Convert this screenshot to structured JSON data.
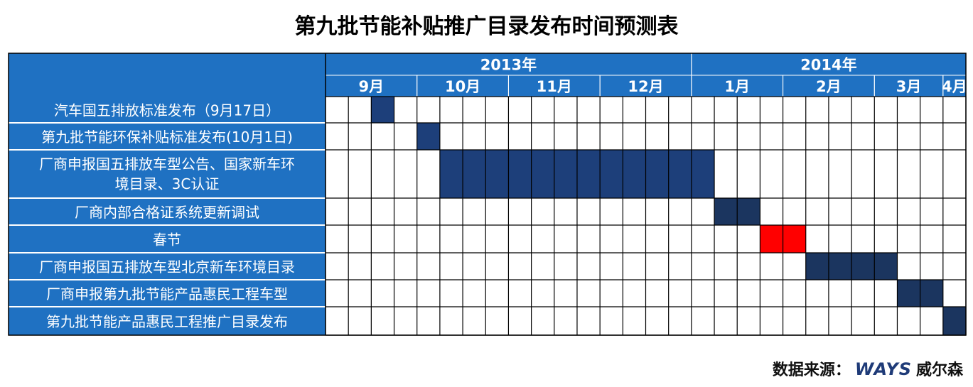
{
  "title": "第九批节能补贴推广目录发布时间预测表",
  "source": {
    "label": "数据来源：",
    "brand": "WAYS",
    "brand_cn": "威尔森"
  },
  "colors": {
    "header_bg": "#1f71c2",
    "task_bg": "#1f71c2",
    "bar": "#1d3f7a",
    "bar_alt": "#1b355f",
    "holiday": "#ff0000",
    "grid": "#000000"
  },
  "chart_data": {
    "type": "gantt",
    "years": [
      {
        "label": "2013年",
        "start_col": 0,
        "span": 16
      },
      {
        "label": "2014年",
        "start_col": 16,
        "span": 12
      }
    ],
    "months": [
      {
        "label": "9月",
        "start_col": 0,
        "span": 4
      },
      {
        "label": "10月",
        "start_col": 4,
        "span": 4
      },
      {
        "label": "11月",
        "start_col": 8,
        "span": 4
      },
      {
        "label": "12月",
        "start_col": 12,
        "span": 4
      },
      {
        "label": "1月",
        "start_col": 16,
        "span": 4
      },
      {
        "label": "2月",
        "start_col": 20,
        "span": 4
      },
      {
        "label": "3月",
        "start_col": 24,
        "span": 3
      },
      {
        "label": "4月",
        "start_col": 27,
        "span": 1
      }
    ],
    "total_weeks": 28,
    "tasks": [
      {
        "label": "汽车国五排放标准发布（9月17日）",
        "start": 2,
        "end": 2,
        "color": "bar"
      },
      {
        "label": "第九批节能环保补贴标准发布(10月1日)",
        "start": 4,
        "end": 4,
        "color": "bar"
      },
      {
        "label": "厂商申报国五排放车型公告、国家新车环境目录、3C认证",
        "lines": [
          "厂商申报国五排放车型公告、国家新车环",
          "境目录、3C认证"
        ],
        "start": 5,
        "end": 16,
        "color": "bar"
      },
      {
        "label": "厂商内部合格证系统更新调试",
        "start": 17,
        "end": 18,
        "color": "bar_alt"
      },
      {
        "label": "春节",
        "start": 19,
        "end": 20,
        "color": "holiday"
      },
      {
        "label": "厂商申报国五排放车型北京新车环境目录",
        "start": 21,
        "end": 24,
        "color": "bar_alt"
      },
      {
        "label": "厂商申报第九批节能产品惠民工程车型",
        "start": 25,
        "end": 26,
        "color": "bar_alt"
      },
      {
        "label": "第九批节能产品惠民工程推广目录发布",
        "start": 27,
        "end": 27,
        "color": "bar_alt"
      }
    ]
  }
}
